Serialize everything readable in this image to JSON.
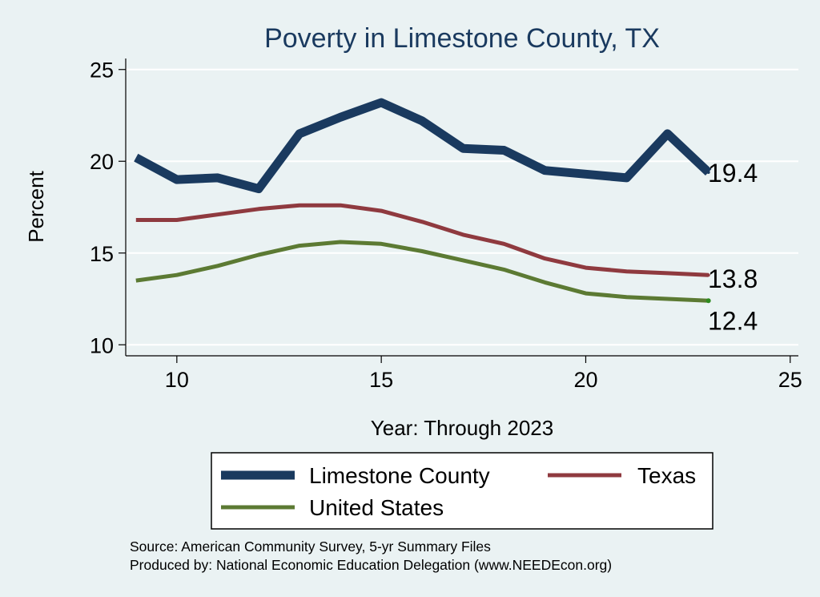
{
  "chart_data": {
    "type": "line",
    "title": "Poverty in Limestone County, TX",
    "xlabel": "Year: Through 2023",
    "ylabel": "Percent",
    "xlim": [
      8.75,
      25.2
    ],
    "ylim": [
      9.4,
      25.6
    ],
    "xticks": [
      10,
      15,
      20,
      25
    ],
    "yticks": [
      10,
      15,
      20,
      25
    ],
    "grid": true,
    "series": [
      {
        "name": "Limestone County",
        "color": "#1a3a5f",
        "x": [
          9,
          10,
          11,
          12,
          13,
          14,
          15,
          16,
          17,
          18,
          19,
          20,
          21,
          22,
          23
        ],
        "values": [
          20.2,
          19.0,
          19.1,
          18.5,
          21.5,
          22.4,
          23.2,
          22.2,
          20.7,
          20.6,
          19.5,
          19.3,
          19.1,
          21.5,
          19.4
        ],
        "end_label": "19.4"
      },
      {
        "name": "Texas",
        "color": "#8f3a3f",
        "x": [
          9,
          10,
          11,
          12,
          13,
          14,
          15,
          16,
          17,
          18,
          19,
          20,
          21,
          22,
          23
        ],
        "values": [
          16.8,
          16.8,
          17.1,
          17.4,
          17.6,
          17.6,
          17.3,
          16.7,
          16.0,
          15.5,
          14.7,
          14.2,
          14.0,
          13.9,
          13.8
        ],
        "end_label": "13.8"
      },
      {
        "name": "United States",
        "color": "#5c7a33",
        "x": [
          9,
          10,
          11,
          12,
          13,
          14,
          15,
          16,
          17,
          18,
          19,
          20,
          21,
          22,
          23
        ],
        "values": [
          13.5,
          13.8,
          14.3,
          14.9,
          15.4,
          15.6,
          15.5,
          15.1,
          14.6,
          14.1,
          13.4,
          12.8,
          12.6,
          12.5,
          12.4
        ],
        "end_label": "12.4"
      }
    ],
    "legend": {
      "position": "bottom",
      "entries": [
        "Limestone County",
        "Texas",
        "United States"
      ]
    },
    "notes": [
      "Source: American Community Survey, 5-yr Summary Files",
      "Produced by: National Economic Education Delegation (www.NEEDEcon.org)"
    ]
  }
}
